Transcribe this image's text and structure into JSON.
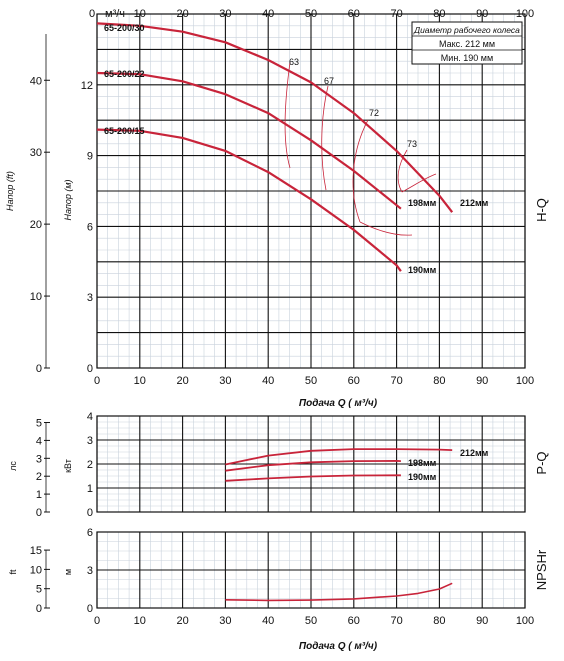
{
  "chart_data": [
    {
      "id": "hq",
      "type": "line",
      "side_label": "H-Q",
      "xlabel": "Подача Q ( м³/ч)",
      "ylabel_left": "Напор (ft)",
      "ylabel_inner": "Напор (м)",
      "top_axis_unit": "м³/ч",
      "xlim": [
        0,
        100
      ],
      "ylim": [
        0,
        15
      ],
      "x_ticks": [
        0,
        10,
        20,
        30,
        40,
        50,
        60,
        70,
        80,
        90,
        100
      ],
      "y_ticks_m": [
        0,
        3,
        6,
        9,
        12
      ],
      "y_ticks_ft": [
        0,
        10,
        20,
        30,
        40
      ],
      "grid": true,
      "legend_box": {
        "title": "Диаметр рабочего колеса",
        "rows": [
          "Макс. 212 мм",
          "Мин.  190 мм"
        ]
      },
      "series": [
        {
          "name": "65-200/30",
          "end_label": "212мм",
          "x": [
            0,
            10,
            20,
            30,
            40,
            50,
            60,
            70,
            80,
            83
          ],
          "y": [
            14.6,
            14.5,
            14.25,
            13.8,
            13.05,
            12.1,
            10.8,
            9.2,
            7.3,
            6.6
          ]
        },
        {
          "name": "65-200/22",
          "end_label": "198мм",
          "x": [
            0,
            10,
            20,
            30,
            40,
            50,
            60,
            70,
            71
          ],
          "y": [
            12.5,
            12.45,
            12.15,
            11.6,
            10.8,
            9.65,
            8.35,
            6.9,
            6.75
          ]
        },
        {
          "name": "65-200/15",
          "end_label": "190мм",
          "x": [
            0,
            10,
            20,
            30,
            40,
            50,
            60,
            70,
            71
          ],
          "y": [
            10.1,
            10.05,
            9.75,
            9.2,
            8.3,
            7.15,
            5.85,
            4.35,
            4.1
          ]
        }
      ],
      "efficiency_labels": [
        "63",
        "67",
        "72",
        "73"
      ]
    },
    {
      "id": "pq",
      "type": "line",
      "side_label": "P-Q",
      "ylabel_left": "лс",
      "ylabel_inner": "кВт",
      "xlim": [
        0,
        100
      ],
      "ylim": [
        0,
        4
      ],
      "y_ticks_kw": [
        0,
        1,
        2,
        3,
        4
      ],
      "y_ticks_hp": [
        0,
        1,
        2,
        3,
        4,
        5
      ],
      "grid": true,
      "series": [
        {
          "name": "212мм",
          "x": [
            30,
            40,
            50,
            60,
            70,
            80,
            83
          ],
          "y": [
            1.98,
            2.35,
            2.55,
            2.62,
            2.62,
            2.6,
            2.58
          ]
        },
        {
          "name": "198мм",
          "x": [
            30,
            40,
            50,
            60,
            70,
            71
          ],
          "y": [
            1.72,
            1.95,
            2.07,
            2.12,
            2.13,
            2.12
          ]
        },
        {
          "name": "190мм",
          "x": [
            30,
            40,
            50,
            60,
            70,
            71
          ],
          "y": [
            1.3,
            1.4,
            1.48,
            1.52,
            1.53,
            1.53
          ]
        }
      ]
    },
    {
      "id": "npsh",
      "type": "line",
      "side_label": "NPSHr",
      "xlabel": "Подача Q ( м³/ч)",
      "ylabel_left": "ft",
      "ylabel_inner": "м",
      "xlim": [
        0,
        100
      ],
      "ylim": [
        0,
        6
      ],
      "y_ticks_m": [
        0,
        3,
        6
      ],
      "y_ticks_ft": [
        0,
        5,
        10,
        15
      ],
      "x_ticks": [
        0,
        10,
        20,
        30,
        40,
        50,
        60,
        70,
        80,
        90,
        100
      ],
      "grid": true,
      "series": [
        {
          "name": "NPSHr",
          "x": [
            30,
            40,
            50,
            60,
            70,
            75,
            80,
            83
          ],
          "y": [
            0.65,
            0.6,
            0.62,
            0.72,
            0.95,
            1.15,
            1.5,
            1.95
          ]
        }
      ]
    }
  ]
}
